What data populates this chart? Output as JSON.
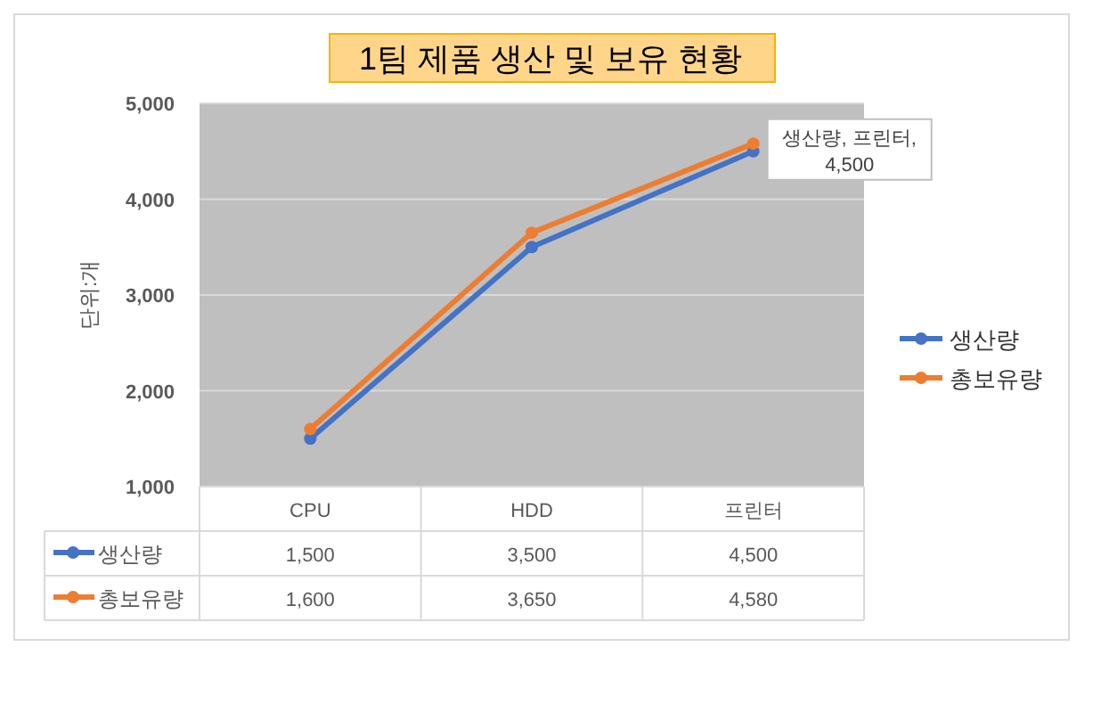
{
  "chart_data": {
    "type": "line",
    "title": "1팀 제품 생산 및 보유 현황",
    "ylabel": "단위:개",
    "categories": [
      "CPU",
      "HDD",
      "프린터"
    ],
    "series": [
      {
        "name": "생산량",
        "color": "#4472c4",
        "values": [
          1500,
          3500,
          4500
        ],
        "value_labels": [
          "1,500",
          "3,500",
          "4,500"
        ]
      },
      {
        "name": "총보유량",
        "color": "#ed7d31",
        "values": [
          1600,
          3650,
          4580
        ],
        "value_labels": [
          "1,600",
          "3,650",
          "4,580"
        ]
      }
    ],
    "ylim": [
      1000,
      5000
    ],
    "yticks": [
      {
        "value": 1000,
        "label": "1,000"
      },
      {
        "value": 2000,
        "label": "2,000"
      },
      {
        "value": 3000,
        "label": "3,000"
      },
      {
        "value": 4000,
        "label": "4,000"
      },
      {
        "value": 5000,
        "label": "5,000"
      }
    ],
    "grid": "y",
    "legend": "right",
    "marker": "circle",
    "line_style": "solid",
    "annotations": [
      {
        "text": "생산량, 프린터, 4,500",
        "x": "프린터",
        "y": 4500
      }
    ]
  }
}
